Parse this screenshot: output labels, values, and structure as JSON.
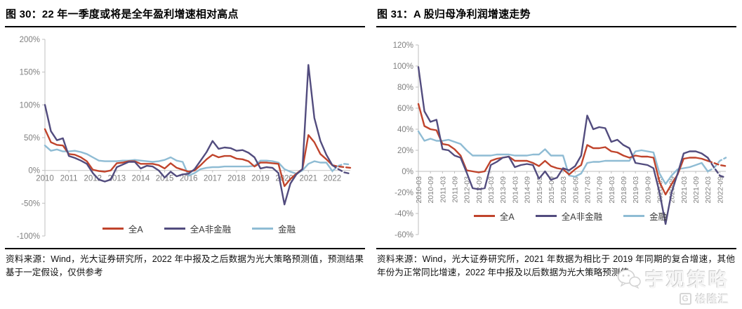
{
  "colors": {
    "title_text": "#000000",
    "axis_line": "#bfbfbf",
    "axis_label": "#808080",
    "zero_line": "#c9c9c9",
    "series_all_a": "#c0442c",
    "series_nonfin": "#524c7e",
    "series_fin": "#8fbcd4",
    "watermark_gray": "#d9d9d9"
  },
  "watermark": {
    "brand": "宇观策略",
    "logo": "格隆汇",
    "logo_badge": "G"
  },
  "chart_data": [
    {
      "type": "line",
      "title": "图 30：22 年一季度或将是全年盈利增速相对高点",
      "source": "资料来源：Wind，光大证券研究所，2022 年中报及之后数据为光大策略预测值，预测结果基于一定假设，仅供参考",
      "ylim": [
        -100,
        200
      ],
      "ytick_step": 50,
      "ytick_suffix": "%",
      "grid": false,
      "legend_position": "bottom-center",
      "x_unit": "quarterly 2010Q1–2022Q4, 2022Q2 onward forecast (dashed)",
      "x_labels": [
        "2010",
        "2011",
        "2012",
        "2013",
        "2014",
        "2015",
        "2016",
        "2017",
        "2018",
        "2019",
        "2020",
        "2021",
        "2022"
      ],
      "label_every": 4,
      "x_label_rotate": false,
      "dash_from": 48,
      "series": [
        {
          "name": "全A",
          "color": "#c0442c",
          "values": [
            63,
            43,
            39,
            38,
            25,
            24,
            20,
            14,
            1,
            -1,
            -2,
            0,
            11,
            12,
            14,
            14,
            10,
            10,
            10,
            8,
            3,
            11,
            4,
            1,
            -2,
            0,
            8,
            17,
            24,
            20,
            22,
            22,
            18,
            17,
            14,
            6,
            12,
            12,
            11,
            10,
            -24,
            -13,
            -5,
            2,
            54,
            43,
            25,
            17,
            8,
            6,
            5,
            4
          ]
        },
        {
          "name": "全A非金融",
          "color": "#524c7e",
          "values": [
            100,
            60,
            46,
            49,
            22,
            19,
            15,
            10,
            -4,
            -14,
            -17,
            -14,
            5,
            9,
            13,
            13,
            3,
            7,
            6,
            0,
            -11,
            -2,
            -9,
            -6,
            -5,
            2,
            15,
            28,
            45,
            33,
            35,
            34,
            30,
            31,
            27,
            20,
            3,
            5,
            4,
            -4,
            -52,
            -20,
            -6,
            2,
            161,
            80,
            45,
            24,
            8,
            2,
            -3,
            -5
          ]
        },
        {
          "name": "金融",
          "color": "#8fbcd4",
          "values": [
            38,
            30,
            32,
            29,
            29,
            30,
            28,
            25,
            20,
            15,
            14,
            14,
            14,
            15,
            15,
            16,
            15,
            14,
            13,
            14,
            16,
            20,
            15,
            13,
            -8,
            -4,
            2,
            4,
            5,
            5,
            6,
            6,
            6,
            6,
            6,
            7,
            15,
            15,
            14,
            12,
            2,
            -2,
            -5,
            0,
            10,
            14,
            12,
            12,
            -1,
            7,
            10,
            9
          ]
        }
      ]
    },
    {
      "type": "line",
      "title": "图 31：A 股归母净利润增速走势",
      "source": "资料来源：Wind，光大证券研究所，2021 年数据为相比于 2019 年同期的复合增速，其他年份为正常同比增速，2022 年中报及以后数据为光大策略预测值",
      "ylim": [
        -60,
        120
      ],
      "ytick_step": 20,
      "ytick_suffix": "%",
      "grid": false,
      "legend_position": "bottom-center",
      "x_unit": "quarterly 2010Q1–2022Q4, 2022-06 onward forecast (dashed)",
      "x_labels": [
        "2010-03",
        "2010-09",
        "2011-03",
        "2011-09",
        "2012-03",
        "2012-09",
        "2013-03",
        "2013-09",
        "2014-03",
        "2014-09",
        "2015-03",
        "2015-09",
        "2016-03",
        "2016-09",
        "2017-03",
        "2017-09",
        "2018-03",
        "2018-09",
        "2019-03",
        "2019-09",
        "2020-03",
        "2020-09",
        "2021-03",
        "2021-09",
        "2022-03",
        "2022-09"
      ],
      "label_every": 2,
      "x_label_rotate": true,
      "dash_from": 48,
      "series": [
        {
          "name": "全A",
          "color": "#c0442c",
          "values": [
            64,
            43,
            40,
            39,
            26,
            25,
            21,
            15,
            1,
            0,
            -1,
            0,
            10,
            12,
            13,
            14,
            10,
            10,
            10,
            8,
            5,
            10,
            5,
            3,
            2,
            -3,
            2,
            6,
            25,
            22,
            22,
            23,
            19,
            18,
            15,
            13,
            15,
            14,
            14,
            13,
            -10,
            -22,
            -12,
            -3,
            12,
            13,
            13,
            12,
            10,
            8,
            6,
            5
          ]
        },
        {
          "name": "全A非金融",
          "color": "#524c7e",
          "values": [
            99,
            57,
            47,
            49,
            21,
            20,
            15,
            13,
            -1,
            -16,
            -17,
            -16,
            6,
            9,
            13,
            14,
            4,
            6,
            7,
            6,
            -7,
            0,
            -8,
            -6,
            3,
            1,
            5,
            15,
            53,
            40,
            42,
            41,
            28,
            30,
            25,
            22,
            8,
            7,
            6,
            3,
            -20,
            -50,
            -20,
            -2,
            17,
            19,
            19,
            17,
            13,
            4,
            -4,
            -6
          ]
        },
        {
          "name": "金融",
          "color": "#8fbcd4",
          "values": [
            38,
            29,
            31,
            29,
            29,
            30,
            28,
            26,
            20,
            15,
            15,
            15,
            15,
            16,
            16,
            16,
            15,
            15,
            15,
            16,
            16,
            21,
            15,
            15,
            15,
            -4,
            -5,
            -2,
            8,
            9,
            9,
            10,
            10,
            10,
            10,
            10,
            19,
            20,
            19,
            18,
            -2,
            -12,
            -4,
            2,
            3,
            4,
            6,
            8,
            0,
            3,
            10,
            13
          ]
        }
      ]
    }
  ]
}
